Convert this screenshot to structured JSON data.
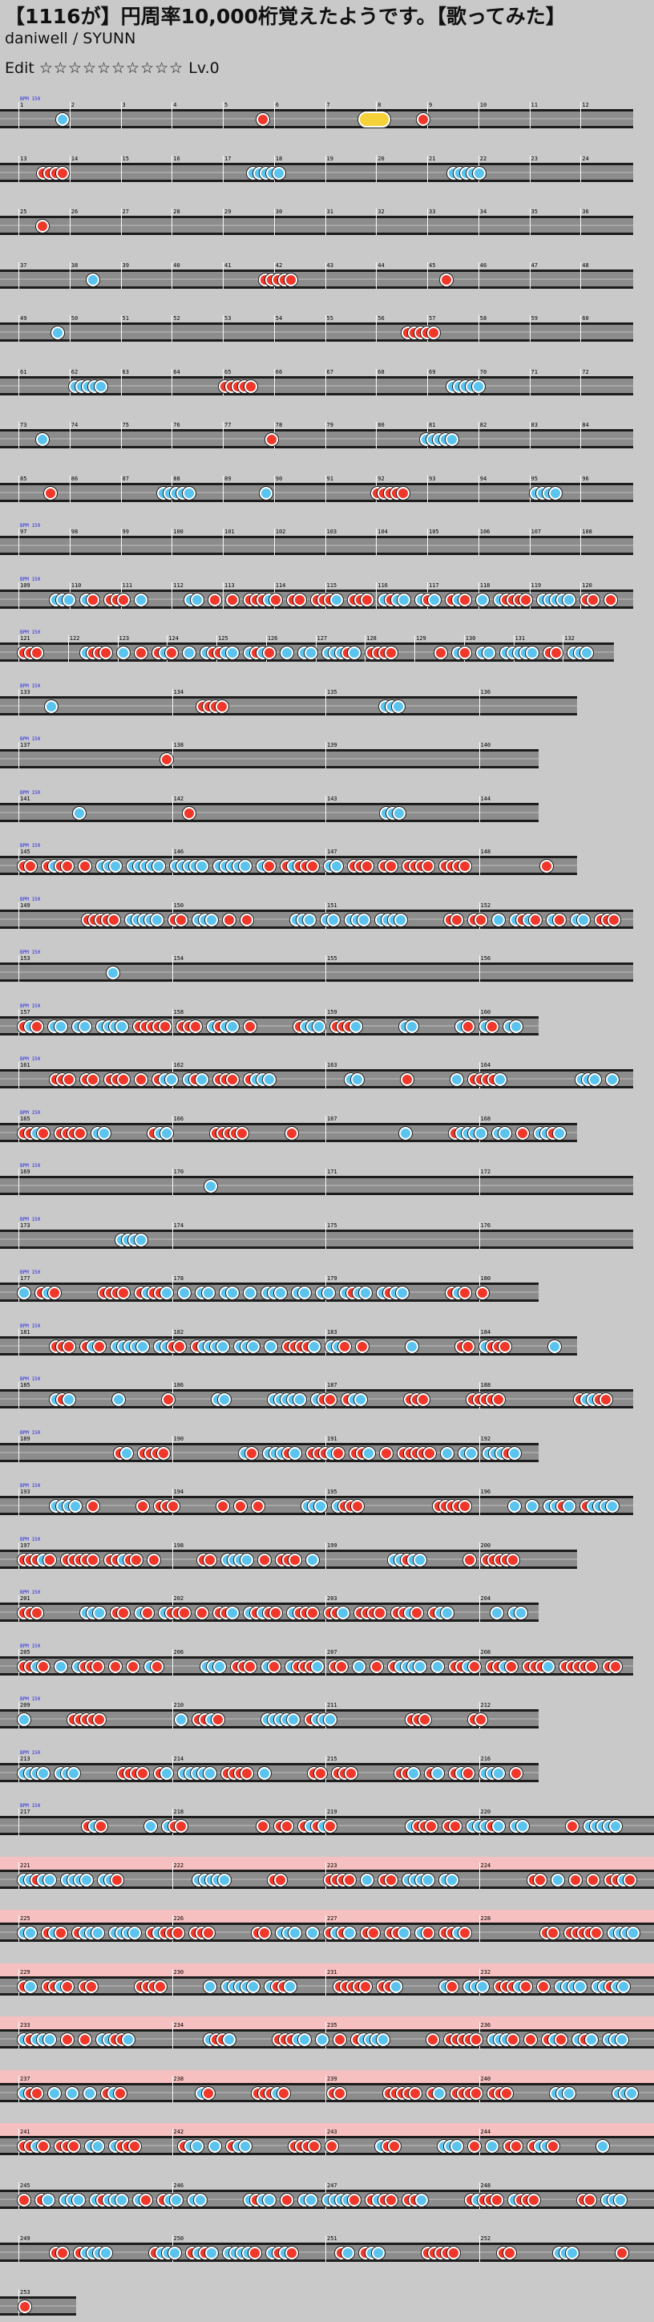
{
  "header": {
    "title": "【1116が】円周率10,000桁覚えたようです。【歌ってみた】",
    "artist": "daniwell / SYUNN",
    "course": "Edit",
    "stars": "☆☆☆☆☆☆☆☆☆☆",
    "level": "Lv.0"
  },
  "colors": {
    "background": "#c9c9c9",
    "lane": "#8c8c8c",
    "don": "#f0372a",
    "ka": "#5ac4ef",
    "roll": "#f6d23a",
    "gogo": "#f6c0c0",
    "bpm_text": "#2a2ae0",
    "scroll_text": "#e02020"
  },
  "chart_rows": [
    {
      "bars": [
        "1",
        "2",
        "3",
        "4",
        "5",
        "6",
        "7",
        "8",
        "9",
        "10",
        "11",
        "12"
      ],
      "bpm": "BPM 150",
      "notes": "k d d"
    },
    {
      "bars": [
        "13",
        "14",
        "15",
        "16",
        "17",
        "18",
        "19",
        "20",
        "21",
        "22",
        "23",
        "24"
      ],
      "notes": "dddd kkkkk kkkkk"
    },
    {
      "bars": [
        "25",
        "26",
        "27",
        "28",
        "29",
        "30",
        "31",
        "32",
        "33",
        "34",
        "35",
        "36"
      ],
      "notes": "d"
    },
    {
      "bars": [
        "37",
        "38",
        "39",
        "40",
        "41",
        "42",
        "43",
        "44",
        "45",
        "46",
        "47",
        "48"
      ],
      "notes": "k ddddd d"
    },
    {
      "bars": [
        "49",
        "50",
        "51",
        "52",
        "53",
        "54",
        "55",
        "56",
        "57",
        "58",
        "59",
        "60"
      ],
      "notes": "k ddddd"
    },
    {
      "bars": [
        "61",
        "62",
        "63",
        "64",
        "65",
        "66",
        "67",
        "68",
        "69",
        "70",
        "71",
        "72"
      ],
      "notes": "kkkkk ddddd kkkkk"
    },
    {
      "bars": [
        "73",
        "74",
        "75",
        "76",
        "77",
        "78",
        "79",
        "80",
        "81",
        "82",
        "83",
        "84"
      ],
      "notes": "k d kkkkk"
    },
    {
      "bars": [
        "85",
        "86",
        "87",
        "88",
        "89",
        "90",
        "91",
        "92",
        "93",
        "94",
        "95",
        "96"
      ],
      "notes": "d kkkkk k ddddd kkkk"
    },
    {
      "bars": [
        "97",
        "98",
        "99",
        "100",
        "101",
        "102",
        "103",
        "104",
        "105",
        "106",
        "107",
        "108"
      ],
      "bpm": "BPM 150",
      "notes": ""
    },
    {
      "bars": [
        "109",
        "110",
        "111",
        "112",
        "113",
        "114",
        "115",
        "116",
        "117",
        "118",
        "119",
        "120"
      ],
      "bpm": "BPM 150",
      "notes": "dense"
    },
    {
      "bars": [
        "121",
        "122",
        "123",
        "124",
        "125",
        "126",
        "127",
        "128",
        "129",
        "130",
        "131",
        "132"
      ],
      "bpm": "BPM 150",
      "notes": "dense"
    },
    {
      "bars": [
        "133",
        "134",
        "135",
        "136"
      ],
      "bpm": "BPM 150",
      "notes": "k dddd kkk"
    },
    {
      "bars": [
        "137",
        "138",
        "139",
        "140"
      ],
      "bpm": "BPM 150",
      "notes": "d"
    },
    {
      "bars": [
        "141",
        "142",
        "143",
        "144"
      ],
      "bpm": "BPM 150",
      "notes": "k d kkk"
    },
    {
      "bars": [
        "145",
        "146",
        "147",
        "148"
      ],
      "bpm": "BPM 150",
      "notes": "dense"
    },
    {
      "bars": [
        "149",
        "150",
        "151",
        "152"
      ],
      "bpm": "BPM 150",
      "notes": "dense"
    },
    {
      "bars": [
        "153",
        "154",
        "155",
        "156"
      ],
      "bpm": "BPM 150",
      "notes": "k"
    },
    {
      "bars": [
        "157",
        "158",
        "159",
        "160"
      ],
      "bpm": "BPM 150",
      "notes": "dense"
    },
    {
      "bars": [
        "161",
        "162",
        "163",
        "164"
      ],
      "bpm": "BPM 150",
      "notes": "dense"
    },
    {
      "bars": [
        "165",
        "166",
        "167",
        "168"
      ],
      "bpm": "BPM 150",
      "notes": "dense"
    },
    {
      "bars": [
        "169",
        "170",
        "171",
        "172"
      ],
      "bpm": "BPM 150",
      "notes": "k"
    },
    {
      "bars": [
        "173",
        "174",
        "175",
        "176"
      ],
      "bpm": "BPM 150",
      "notes": "kkkk"
    },
    {
      "bars": [
        "177",
        "178",
        "179",
        "180"
      ],
      "bpm": "BPM 150",
      "notes": "dense"
    },
    {
      "bars": [
        "181",
        "182",
        "183",
        "184"
      ],
      "bpm": "BPM 150",
      "notes": "dense"
    },
    {
      "bars": [
        "185",
        "186",
        "187",
        "188"
      ],
      "bpm": "BPM 150",
      "notes": "dense"
    },
    {
      "bars": [
        "189",
        "190",
        "191",
        "192"
      ],
      "bpm": "BPM 150",
      "notes": "dense"
    },
    {
      "bars": [
        "193",
        "194",
        "195",
        "196"
      ],
      "bpm": "BPM 150",
      "notes": "dense"
    },
    {
      "bars": [
        "197",
        "198",
        "199",
        "200"
      ],
      "bpm": "BPM 150",
      "notes": "dense"
    },
    {
      "bars": [
        "201",
        "202",
        "203",
        "204"
      ],
      "bpm": "BPM 150",
      "notes": "dense"
    },
    {
      "bars": [
        "205",
        "206",
        "207",
        "208"
      ],
      "bpm": "BPM 150",
      "notes": "dense"
    },
    {
      "bars": [
        "209",
        "210",
        "211",
        "212"
      ],
      "bpm": "BPM 150",
      "notes": "dense"
    },
    {
      "bars": [
        "213",
        "214",
        "215",
        "216"
      ],
      "bpm": "BPM 150",
      "notes": "dense"
    },
    {
      "bars": [
        "217",
        "218",
        "219",
        "220"
      ],
      "bpm": "BPM 150",
      "notes": "dense"
    },
    {
      "bars": [
        "221",
        "222",
        "223",
        "224"
      ],
      "notes": "dense gogo"
    },
    {
      "bars": [
        "225",
        "226",
        "227",
        "228"
      ],
      "notes": "dense gogo"
    },
    {
      "bars": [
        "229",
        "230",
        "231",
        "232"
      ],
      "notes": "dense gogo"
    },
    {
      "bars": [
        "233",
        "234",
        "235",
        "236"
      ],
      "notes": "dense gogo"
    },
    {
      "bars": [
        "237",
        "238",
        "239",
        "240"
      ],
      "notes": "dense gogo"
    },
    {
      "bars": [
        "241",
        "242",
        "243",
        "244"
      ],
      "notes": "dense gogo"
    },
    {
      "bars": [
        "245",
        "246",
        "247",
        "248"
      ],
      "notes": "dense"
    },
    {
      "bars": [
        "249",
        "250",
        "251",
        "252"
      ],
      "notes": "dense"
    },
    {
      "bars": [
        "253"
      ],
      "notes": "d"
    }
  ]
}
